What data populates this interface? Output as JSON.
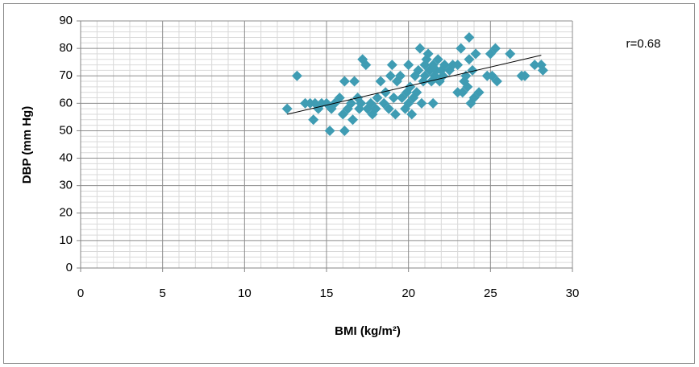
{
  "chart_data": {
    "type": "scatter",
    "x_label": "BMI (kg/m²)",
    "y_label": "DBP (mm  Hg)",
    "annotation": "r=0.68",
    "xlim": [
      0,
      30
    ],
    "ylim": [
      0,
      90
    ],
    "xticks": [
      0,
      5,
      10,
      15,
      20,
      25,
      30
    ],
    "yticks": [
      0,
      10,
      20,
      30,
      40,
      50,
      60,
      70,
      80,
      90
    ],
    "grid": true,
    "color": "#3f9cb3",
    "x": [
      12.6,
      13.2,
      13.7,
      14,
      14.2,
      14.3,
      14.5,
      14.7,
      15,
      15.2,
      15.3,
      15.5,
      15.8,
      16,
      16.1,
      16.1,
      16.3,
      16.5,
      16.6,
      16.7,
      16.9,
      17,
      17.1,
      17.2,
      17.4,
      17.5,
      17.7,
      17.8,
      18,
      18.1,
      18.3,
      18.5,
      18.6,
      18.8,
      18.9,
      19,
      19.1,
      19.2,
      19.3,
      19.5,
      19.6,
      19.8,
      19.9,
      20,
      20,
      20.1,
      20.2,
      20.3,
      20.4,
      20.5,
      20.6,
      20.7,
      20.8,
      20.9,
      21,
      21,
      21.1,
      21.2,
      21.3,
      21.4,
      21.5,
      21.5,
      21.6,
      21.7,
      21.8,
      21.9,
      22,
      22.1,
      22.2,
      22.5,
      22.7,
      23,
      23,
      23.2,
      23.3,
      23.4,
      23.5,
      23.6,
      23.7,
      23.7,
      23.8,
      23.9,
      24,
      24.1,
      24.3,
      24.8,
      25,
      25.1,
      25.3,
      25.4,
      26.2,
      26.9,
      27.1,
      27.7,
      28.1,
      28.2
    ],
    "values": [
      58,
      70,
      60,
      60,
      54,
      60,
      58,
      60,
      60,
      50,
      58,
      60,
      62,
      56,
      50,
      68,
      58,
      60,
      54,
      68,
      62,
      58,
      60,
      76,
      74,
      58,
      60,
      56,
      58,
      62,
      68,
      60,
      64,
      58,
      70,
      74,
      62,
      56,
      68,
      70,
      62,
      58,
      64,
      60,
      74,
      66,
      56,
      62,
      70,
      64,
      72,
      80,
      60,
      68,
      74,
      70,
      76,
      78,
      72,
      68,
      60,
      74,
      70,
      72,
      76,
      68,
      72,
      70,
      74,
      72,
      74,
      74,
      64,
      80,
      64,
      68,
      70,
      66,
      84,
      76,
      60,
      72,
      62,
      78,
      64,
      70,
      78,
      70,
      80,
      68,
      78,
      70,
      70,
      74,
      74,
      72
    ],
    "trendline": {
      "x": [
        12.6,
        28.1
      ],
      "y": [
        56,
        77.5
      ],
      "color": "#000000"
    }
  }
}
